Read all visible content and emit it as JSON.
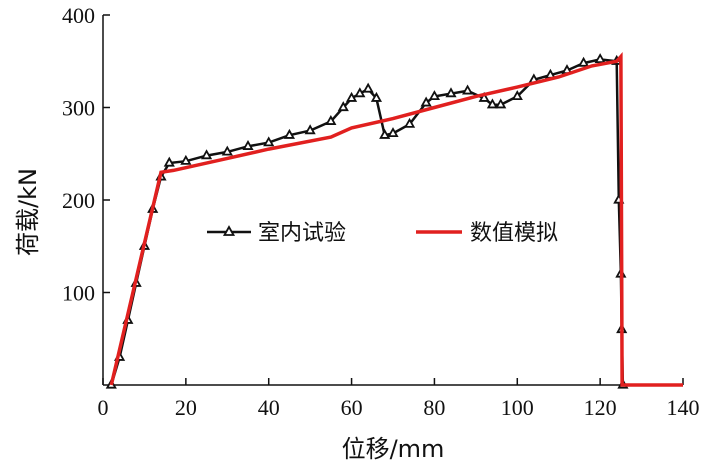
{
  "chart_data": {
    "type": "line",
    "xlabel": "位移/mm",
    "ylabel": "荷载/kN",
    "xlim": [
      0,
      140
    ],
    "ylim": [
      0,
      400
    ],
    "xticks": [
      0,
      20,
      40,
      60,
      80,
      100,
      120,
      140
    ],
    "yticks": [
      100,
      200,
      300,
      400
    ],
    "grid": false,
    "legend_position": "center-right",
    "series": [
      {
        "name": "室内试验",
        "color": "#111111",
        "marker": "triangle",
        "x": [
          2,
          4,
          6,
          8,
          10,
          12,
          14,
          16,
          20,
          25,
          30,
          35,
          40,
          45,
          50,
          55,
          58,
          60,
          62,
          64,
          66,
          68,
          70,
          74,
          78,
          80,
          84,
          88,
          92,
          94,
          96,
          100,
          104,
          108,
          112,
          116,
          120,
          124,
          124.5,
          125,
          125.2,
          125.5
        ],
        "y": [
          0,
          30,
          70,
          110,
          150,
          190,
          225,
          240,
          242,
          248,
          252,
          258,
          262,
          270,
          275,
          285,
          300,
          310,
          315,
          320,
          310,
          270,
          272,
          282,
          305,
          312,
          315,
          318,
          310,
          303,
          303,
          312,
          330,
          335,
          340,
          348,
          352,
          350,
          200,
          120,
          60,
          0
        ]
      },
      {
        "name": "数值模拟",
        "color": "#e1201f",
        "marker": "none",
        "x": [
          2,
          14,
          17,
          30,
          40,
          55,
          60,
          70,
          80,
          90,
          100,
          110,
          118,
          124,
          125,
          125.3,
          140
        ],
        "y": [
          0,
          230,
          232,
          245,
          255,
          268,
          278,
          288,
          300,
          312,
          322,
          333,
          345,
          350,
          355,
          0,
          0
        ]
      }
    ]
  }
}
